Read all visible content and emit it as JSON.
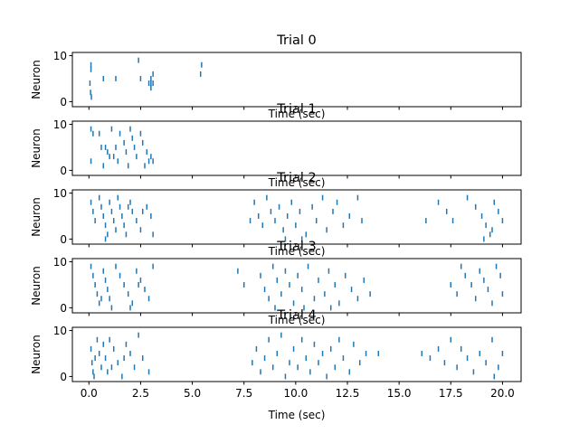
{
  "chart_data": {
    "type": "scatter",
    "marker": "vertical-line",
    "color": "#1f77b4",
    "xlim": [
      -0.8,
      20.9
    ],
    "ylim": [
      -1.1,
      10.7
    ],
    "xticks": [
      0,
      2.5,
      5,
      7.5,
      10,
      12.5,
      15,
      17.5,
      20
    ],
    "xtick_labels": [
      "0.0",
      "2.5",
      "5.0",
      "7.5",
      "10.0",
      "12.5",
      "15.0",
      "17.5",
      "20.0"
    ],
    "yticks": [
      0,
      10
    ],
    "ytick_labels": [
      "0",
      "10"
    ],
    "xticklabels_only_on_last": true,
    "trials": [
      {
        "title": "Trial 0",
        "xlabel": "Time (sec)",
        "ylabel": "Neuron",
        "spikes": [
          [
            0.1,
            8
          ],
          [
            0.1,
            7
          ],
          [
            0.05,
            4
          ],
          [
            0.08,
            2
          ],
          [
            0.12,
            1
          ],
          [
            0.7,
            5
          ],
          [
            1.3,
            5
          ],
          [
            2.4,
            9
          ],
          [
            2.5,
            5
          ],
          [
            2.9,
            4
          ],
          [
            3.0,
            4
          ],
          [
            3.1,
            4
          ],
          [
            3.0,
            3
          ],
          [
            3.1,
            6
          ],
          [
            3.0,
            5
          ],
          [
            5.45,
            8
          ],
          [
            5.4,
            6
          ]
        ]
      },
      {
        "title": "Trial 1",
        "xlabel": "Time (sec)",
        "ylabel": "Neuron",
        "spikes": [
          [
            0.1,
            9
          ],
          [
            0.2,
            8
          ],
          [
            0.1,
            2
          ],
          [
            0.5,
            8
          ],
          [
            0.6,
            5
          ],
          [
            0.8,
            5
          ],
          [
            0.9,
            4
          ],
          [
            0.7,
            1
          ],
          [
            1.0,
            3
          ],
          [
            1.2,
            3
          ],
          [
            1.3,
            5
          ],
          [
            1.4,
            2
          ],
          [
            1.5,
            8
          ],
          [
            1.7,
            6
          ],
          [
            1.8,
            4
          ],
          [
            1.9,
            1
          ],
          [
            2.1,
            7
          ],
          [
            2.2,
            5
          ],
          [
            2.3,
            3
          ],
          [
            2.5,
            8
          ],
          [
            2.6,
            6
          ],
          [
            2.7,
            1
          ],
          [
            2.8,
            4
          ],
          [
            2.9,
            2
          ],
          [
            3.0,
            3
          ],
          [
            3.1,
            2
          ],
          [
            1.1,
            9
          ],
          [
            2.0,
            9
          ]
        ]
      },
      {
        "title": "Trial 2",
        "xlabel": "Time (sec)",
        "ylabel": "Neuron",
        "spikes": [
          [
            0.1,
            8
          ],
          [
            0.2,
            6
          ],
          [
            0.3,
            4
          ],
          [
            0.5,
            9
          ],
          [
            0.6,
            7
          ],
          [
            0.7,
            5
          ],
          [
            0.8,
            3
          ],
          [
            0.9,
            1
          ],
          [
            1.0,
            8
          ],
          [
            1.1,
            6
          ],
          [
            1.2,
            4
          ],
          [
            1.3,
            2
          ],
          [
            1.4,
            9
          ],
          [
            1.5,
            7
          ],
          [
            1.6,
            5
          ],
          [
            1.7,
            3
          ],
          [
            1.8,
            1
          ],
          [
            2.0,
            8
          ],
          [
            2.1,
            6
          ],
          [
            2.3,
            4
          ],
          [
            2.5,
            2
          ],
          [
            2.8,
            7
          ],
          [
            3.0,
            5
          ],
          [
            3.1,
            1
          ],
          [
            0.8,
            0
          ],
          [
            1.9,
            7
          ],
          [
            2.6,
            6
          ],
          [
            8.0,
            8
          ],
          [
            8.2,
            5
          ],
          [
            8.4,
            3
          ],
          [
            8.6,
            9
          ],
          [
            8.8,
            6
          ],
          [
            9.0,
            4
          ],
          [
            9.2,
            7
          ],
          [
            9.4,
            2
          ],
          [
            9.6,
            5
          ],
          [
            9.8,
            8
          ],
          [
            10.0,
            3
          ],
          [
            10.2,
            6
          ],
          [
            10.5,
            1
          ],
          [
            10.8,
            7
          ],
          [
            11.0,
            4
          ],
          [
            11.3,
            9
          ],
          [
            11.5,
            2
          ],
          [
            11.8,
            6
          ],
          [
            12.0,
            8
          ],
          [
            12.3,
            3
          ],
          [
            12.6,
            5
          ],
          [
            13.0,
            9
          ],
          [
            13.2,
            4
          ],
          [
            7.8,
            4
          ],
          [
            9.5,
            0
          ],
          [
            10.3,
            0
          ],
          [
            16.3,
            4
          ],
          [
            16.9,
            8
          ],
          [
            17.3,
            6
          ],
          [
            17.6,
            4
          ],
          [
            18.3,
            9
          ],
          [
            18.7,
            7
          ],
          [
            19.0,
            5
          ],
          [
            19.2,
            3
          ],
          [
            19.4,
            1
          ],
          [
            19.6,
            8
          ],
          [
            19.8,
            6
          ],
          [
            20.0,
            4
          ],
          [
            19.1,
            0
          ],
          [
            19.5,
            2
          ]
        ]
      },
      {
        "title": "Trial 3",
        "xlabel": "Time (sec)",
        "ylabel": "Neuron",
        "spikes": [
          [
            0.1,
            9
          ],
          [
            0.2,
            7
          ],
          [
            0.3,
            5
          ],
          [
            0.4,
            3
          ],
          [
            0.5,
            1
          ],
          [
            0.7,
            8
          ],
          [
            0.8,
            6
          ],
          [
            0.9,
            4
          ],
          [
            1.0,
            2
          ],
          [
            1.1,
            0
          ],
          [
            1.3,
            9
          ],
          [
            1.5,
            7
          ],
          [
            1.7,
            5
          ],
          [
            1.9,
            3
          ],
          [
            2.1,
            1
          ],
          [
            2.3,
            8
          ],
          [
            2.5,
            6
          ],
          [
            2.7,
            4
          ],
          [
            2.9,
            2
          ],
          [
            3.1,
            9
          ],
          [
            0.6,
            2
          ],
          [
            2.0,
            0
          ],
          [
            2.4,
            5
          ],
          [
            7.2,
            8
          ],
          [
            7.5,
            5
          ],
          [
            8.3,
            7
          ],
          [
            8.5,
            4
          ],
          [
            8.7,
            2
          ],
          [
            8.9,
            9
          ],
          [
            9.1,
            6
          ],
          [
            9.3,
            3
          ],
          [
            9.5,
            8
          ],
          [
            9.7,
            5
          ],
          [
            9.9,
            1
          ],
          [
            10.1,
            7
          ],
          [
            10.3,
            4
          ],
          [
            10.6,
            9
          ],
          [
            10.9,
            2
          ],
          [
            11.1,
            6
          ],
          [
            11.4,
            3
          ],
          [
            11.6,
            8
          ],
          [
            11.9,
            5
          ],
          [
            12.1,
            1
          ],
          [
            12.4,
            7
          ],
          [
            12.7,
            4
          ],
          [
            13.0,
            2
          ],
          [
            13.3,
            6
          ],
          [
            13.6,
            3
          ],
          [
            9.0,
            0
          ],
          [
            10.4,
            0
          ],
          [
            11.7,
            0
          ],
          [
            17.5,
            5
          ],
          [
            17.8,
            3
          ],
          [
            18.0,
            9
          ],
          [
            18.2,
            7
          ],
          [
            18.5,
            5
          ],
          [
            18.7,
            2
          ],
          [
            18.9,
            8
          ],
          [
            19.1,
            6
          ],
          [
            19.3,
            4
          ],
          [
            19.5,
            1
          ],
          [
            19.7,
            9
          ],
          [
            19.9,
            7
          ],
          [
            20.0,
            3
          ]
        ]
      },
      {
        "title": "Trial 4",
        "xlabel": "Time (sec)",
        "ylabel": "Neuron",
        "spikes": [
          [
            0.1,
            6
          ],
          [
            0.15,
            3
          ],
          [
            0.2,
            1
          ],
          [
            0.25,
            0
          ],
          [
            0.4,
            8
          ],
          [
            0.5,
            5
          ],
          [
            0.6,
            2
          ],
          [
            0.7,
            7
          ],
          [
            0.8,
            4
          ],
          [
            0.9,
            1
          ],
          [
            1.0,
            8
          ],
          [
            1.2,
            6
          ],
          [
            1.4,
            3
          ],
          [
            1.6,
            0
          ],
          [
            1.8,
            7
          ],
          [
            2.0,
            5
          ],
          [
            2.2,
            2
          ],
          [
            2.4,
            9
          ],
          [
            2.6,
            4
          ],
          [
            2.9,
            1
          ],
          [
            1.1,
            2
          ],
          [
            1.7,
            4
          ],
          [
            0.3,
            4
          ],
          [
            7.9,
            3
          ],
          [
            8.1,
            6
          ],
          [
            8.3,
            1
          ],
          [
            8.5,
            4
          ],
          [
            8.7,
            8
          ],
          [
            8.9,
            2
          ],
          [
            9.1,
            5
          ],
          [
            9.3,
            9
          ],
          [
            9.5,
            0
          ],
          [
            9.7,
            3
          ],
          [
            9.9,
            6
          ],
          [
            10.1,
            2
          ],
          [
            10.3,
            8
          ],
          [
            10.5,
            4
          ],
          [
            10.7,
            1
          ],
          [
            10.9,
            7
          ],
          [
            11.1,
            3
          ],
          [
            11.3,
            5
          ],
          [
            11.5,
            0
          ],
          [
            11.7,
            6
          ],
          [
            11.9,
            2
          ],
          [
            12.1,
            8
          ],
          [
            12.3,
            4
          ],
          [
            12.6,
            1
          ],
          [
            12.8,
            7
          ],
          [
            13.1,
            3
          ],
          [
            13.4,
            5
          ],
          [
            14.0,
            5
          ],
          [
            16.1,
            5
          ],
          [
            16.5,
            4
          ],
          [
            16.9,
            6
          ],
          [
            17.2,
            3
          ],
          [
            17.5,
            8
          ],
          [
            17.8,
            2
          ],
          [
            18.0,
            6
          ],
          [
            18.3,
            4
          ],
          [
            18.6,
            1
          ],
          [
            18.9,
            5
          ],
          [
            19.2,
            3
          ],
          [
            19.5,
            8
          ],
          [
            19.8,
            2
          ],
          [
            20.0,
            5
          ],
          [
            19.6,
            0
          ]
        ]
      }
    ]
  }
}
